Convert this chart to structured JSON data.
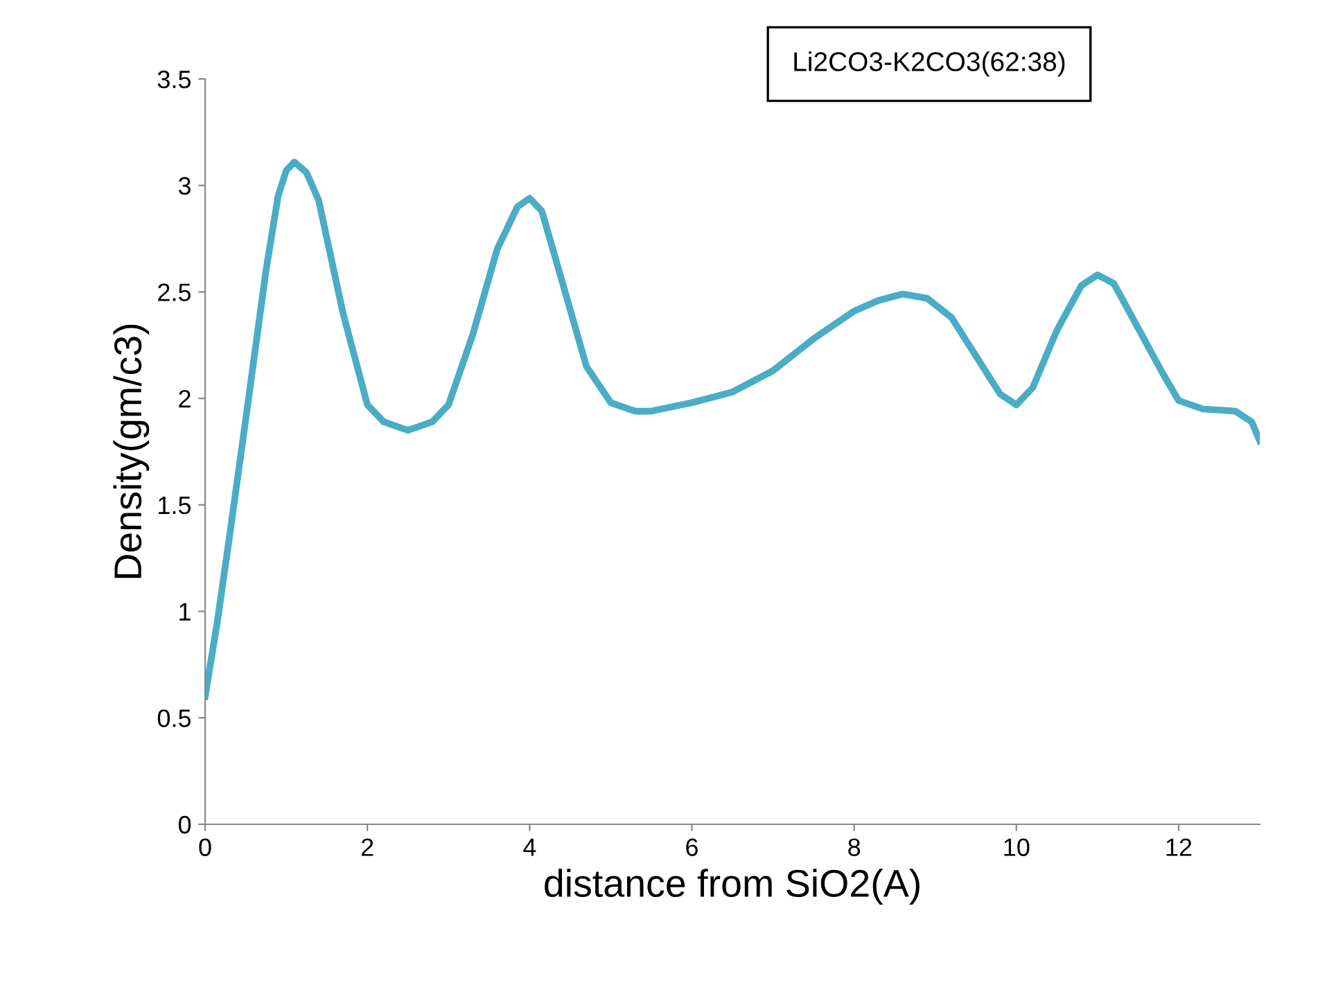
{
  "chart_data": {
    "type": "line",
    "xlabel": "distance from SiO2(A)",
    "ylabel": "Density(gm/c3)",
    "annotations": [
      "Li2CO3-K2CO3(62:38)"
    ],
    "x": [
      0,
      0.15,
      0.3,
      0.5,
      0.75,
      0.9,
      1.0,
      1.1,
      1.25,
      1.4,
      1.7,
      2.0,
      2.2,
      2.5,
      2.8,
      3.0,
      3.3,
      3.6,
      3.85,
      4.0,
      4.15,
      4.4,
      4.7,
      5.0,
      5.3,
      5.5,
      6.0,
      6.5,
      7.0,
      7.5,
      8.0,
      8.3,
      8.6,
      8.9,
      9.2,
      9.5,
      9.8,
      10.0,
      10.2,
      10.5,
      10.8,
      11.0,
      11.2,
      11.5,
      11.8,
      12.0,
      12.3,
      12.7,
      12.9,
      13.0
    ],
    "series": [
      {
        "color": "#4bacc6",
        "values": [
          0.6,
          0.95,
          1.35,
          1.9,
          2.6,
          2.95,
          3.07,
          3.11,
          3.06,
          2.93,
          2.4,
          1.97,
          1.89,
          1.85,
          1.89,
          1.97,
          2.3,
          2.7,
          2.9,
          2.94,
          2.88,
          2.55,
          2.15,
          1.98,
          1.94,
          1.94,
          1.98,
          2.03,
          2.13,
          2.28,
          2.41,
          2.46,
          2.49,
          2.47,
          2.38,
          2.2,
          2.02,
          1.97,
          2.05,
          2.32,
          2.53,
          2.58,
          2.54,
          2.33,
          2.12,
          1.99,
          1.95,
          1.94,
          1.89,
          1.8
        ]
      }
    ],
    "xlim": [
      0,
      13
    ],
    "xticks": [
      0,
      2,
      4,
      6,
      8,
      10,
      12
    ],
    "ylim": [
      0,
      3.5
    ],
    "yticks": [
      0,
      0.5,
      1,
      1.5,
      2,
      2.5,
      3,
      3.5
    ],
    "grid": false,
    "marker": "none",
    "line_style": "solid",
    "legend": false
  }
}
